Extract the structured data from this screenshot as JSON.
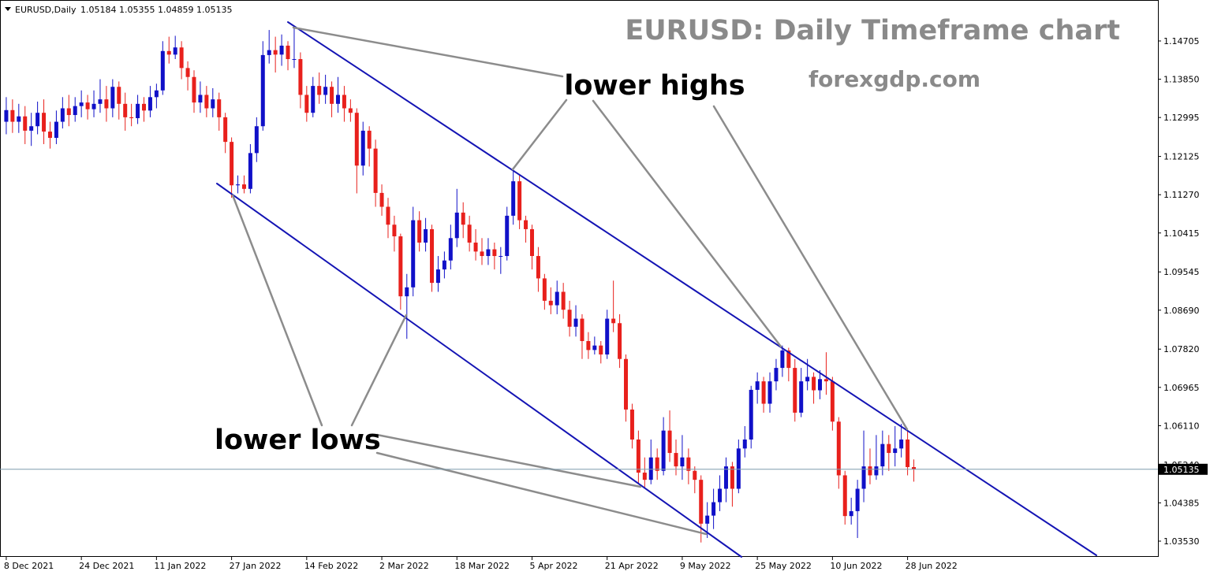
{
  "chart_data": {
    "type": "candlestick",
    "symbol": "EURUSD,Daily",
    "title": "EURUSD: Daily Timeframe chart",
    "subtitle": "forexgdp.com",
    "annotations": [
      "lower highs",
      "lower lows"
    ],
    "up_color": "#1010c8",
    "down_color": "#e8201c",
    "current_price": 1.05135,
    "ylim": [
      1.03178,
      1.1562
    ],
    "yticks": [
      1.14705,
      {
        "value": 1.1385,
        "label": "1.13850"
      },
      1.12995,
      1.12125,
      {
        "value": 1.1127,
        "label": "1.11270"
      },
      1.10415,
      1.09545,
      {
        "value": 1.0869,
        "label": "1.08690"
      },
      {
        "value": 1.0782,
        "label": "1.07820"
      },
      1.06965,
      {
        "value": 1.0611,
        "label": "1.06110"
      },
      {
        "value": 1.0524,
        "label": "1.05240"
      },
      1.04385,
      {
        "value": 1.0353,
        "label": "1.03530"
      }
    ],
    "xlim": [
      -1,
      184
    ],
    "xticks": [
      {
        "value": 0,
        "label": "8 Dec 2021"
      },
      {
        "value": 12,
        "label": "24 Dec 2021"
      },
      {
        "value": 24,
        "label": "11 Jan 2022"
      },
      {
        "value": 36,
        "label": "27 Jan 2022"
      },
      {
        "value": 48,
        "label": "14 Feb 2022"
      },
      {
        "value": 60,
        "label": "2 Mar 2022"
      },
      {
        "value": 72,
        "label": "18 Mar 2022"
      },
      {
        "value": 84,
        "label": "5 Apr 2022"
      },
      {
        "value": 96,
        "label": "21 Apr 2022"
      },
      {
        "value": 108,
        "label": "9 May 2022"
      },
      {
        "value": 120,
        "label": "25 May 2022"
      },
      {
        "value": 132,
        "label": "10 Jun 2022"
      },
      {
        "value": 144,
        "label": "28 Jun 2022"
      }
    ],
    "open": [
      1.129,
      1.1316,
      1.129,
      1.1302,
      1.127,
      1.128,
      1.131,
      1.1268,
      1.1254,
      1.129,
      1.132,
      1.1305,
      1.1325,
      1.1333,
      1.1318,
      1.133,
      1.134,
      1.132,
      1.1368,
      1.133,
      1.13,
      1.1298,
      1.133,
      1.1315,
      1.1345,
      1.136,
      1.1448,
      1.144,
      1.1456,
      1.141,
      1.139,
      1.1333,
      1.135,
      1.132,
      1.134,
      1.13,
      1.1245,
      1.1148,
      1.115,
      1.114,
      1.122,
      1.128,
      1.1439,
      1.145,
      1.144,
      1.146,
      1.143,
      1.143,
      1.135,
      1.131,
      1.137,
      1.135,
      1.1368,
      1.133,
      1.135,
      1.132,
      1.131,
      1.1192,
      1.127,
      1.123,
      1.1131,
      1.11,
      1.106,
      1.1034,
      1.09,
      1.092,
      1.107,
      1.102,
      1.105,
      1.093,
      1.096,
      1.098,
      1.103,
      1.1087,
      1.106,
      1.102,
      1.1,
      1.099,
      1.1005,
      1.099,
      1.099,
      1.108,
      1.1157,
      1.107,
      1.105,
      1.099,
      1.094,
      1.089,
      1.088,
      1.091,
      1.087,
      1.0832,
      1.085,
      1.08,
      1.078,
      1.079,
      1.077,
      1.085,
      1.084,
      1.076,
      1.0647,
      1.058,
      1.0506,
      1.049,
      1.054,
      1.051,
      1.06,
      1.055,
      1.052,
      1.054,
      1.051,
      1.049,
      1.0392,
      1.041,
      1.044,
      1.047,
      1.052,
      1.047,
      1.056,
      1.058,
      1.0691,
      1.071,
      1.066,
      1.071,
      1.074,
      1.0779,
      1.074,
      1.064,
      1.071,
      1.072,
      1.069,
      1.0715,
      1.071,
      1.062,
      1.05,
      1.0409,
      1.042,
      1.047,
      1.052,
      1.05,
      1.052,
      1.057,
      1.055,
      1.056,
      1.058,
      1.05184
    ],
    "high": [
      1.1345,
      1.134,
      1.133,
      1.1325,
      1.131,
      1.1335,
      1.134,
      1.129,
      1.1315,
      1.1345,
      1.135,
      1.1345,
      1.136,
      1.135,
      1.136,
      1.1385,
      1.137,
      1.1385,
      1.138,
      1.1355,
      1.133,
      1.135,
      1.1345,
      1.137,
      1.1375,
      1.147,
      1.148,
      1.1482,
      1.147,
      1.1425,
      1.1405,
      1.138,
      1.137,
      1.1365,
      1.1355,
      1.131,
      1.1255,
      1.117,
      1.117,
      1.124,
      1.13,
      1.147,
      1.1495,
      1.148,
      1.1485,
      1.147,
      1.15,
      1.1445,
      1.137,
      1.139,
      1.14,
      1.1395,
      1.138,
      1.139,
      1.137,
      1.134,
      1.132,
      1.129,
      1.128,
      1.125,
      1.115,
      1.112,
      1.108,
      1.104,
      1.095,
      1.11,
      1.109,
      1.1075,
      1.106,
      1.099,
      1.1,
      1.106,
      1.114,
      1.111,
      1.108,
      1.105,
      1.103,
      1.103,
      1.102,
      1.101,
      1.11,
      1.1185,
      1.117,
      1.108,
      1.106,
      1.101,
      1.095,
      1.092,
      1.0935,
      1.093,
      1.089,
      1.088,
      1.086,
      1.082,
      1.081,
      1.08,
      1.087,
      1.0935,
      1.086,
      1.077,
      1.066,
      1.06,
      1.054,
      1.058,
      1.056,
      1.063,
      1.0645,
      1.058,
      1.059,
      1.056,
      1.052,
      1.05,
      1.044,
      1.047,
      1.05,
      1.054,
      1.053,
      1.058,
      1.061,
      1.07,
      1.073,
      1.072,
      1.073,
      1.076,
      1.079,
      1.0785,
      1.076,
      1.074,
      1.076,
      1.073,
      1.0735,
      1.0775,
      1.072,
      1.063,
      1.051,
      1.045,
      1.049,
      1.06,
      1.056,
      1.059,
      1.06,
      1.059,
      1.061,
      1.0615,
      1.06,
      1.05355
    ],
    "low": [
      1.1262,
      1.1265,
      1.1265,
      1.124,
      1.1236,
      1.1262,
      1.124,
      1.123,
      1.124,
      1.1275,
      1.128,
      1.129,
      1.13,
      1.1295,
      1.13,
      1.131,
      1.129,
      1.13,
      1.1295,
      1.127,
      1.128,
      1.1285,
      1.129,
      1.13,
      1.132,
      1.135,
      1.142,
      1.143,
      1.1385,
      1.136,
      1.131,
      1.131,
      1.13,
      1.13,
      1.127,
      1.122,
      1.112,
      1.113,
      1.113,
      1.113,
      1.12,
      1.127,
      1.142,
      1.14,
      1.1415,
      1.1405,
      1.141,
      1.132,
      1.129,
      1.13,
      1.133,
      1.133,
      1.13,
      1.131,
      1.129,
      1.129,
      1.113,
      1.117,
      1.119,
      1.11,
      1.108,
      1.103,
      1.1,
      1.087,
      1.0805,
      1.09,
      1.1,
      1.1,
      1.091,
      1.091,
      1.094,
      1.096,
      1.101,
      1.103,
      1.1,
      1.098,
      1.097,
      1.097,
      1.096,
      1.095,
      1.098,
      1.106,
      1.105,
      1.102,
      1.096,
      1.091,
      1.087,
      1.086,
      1.086,
      1.085,
      1.081,
      1.081,
      1.076,
      1.076,
      1.077,
      1.075,
      1.076,
      1.082,
      1.074,
      1.062,
      1.056,
      1.048,
      1.047,
      1.048,
      1.049,
      1.05,
      1.053,
      1.05,
      1.049,
      1.048,
      1.046,
      1.035,
      1.036,
      1.038,
      1.042,
      1.044,
      1.043,
      1.046,
      1.054,
      1.056,
      1.066,
      1.064,
      1.064,
      1.069,
      1.072,
      1.071,
      1.062,
      1.063,
      1.069,
      1.066,
      1.067,
      1.068,
      1.06,
      1.047,
      1.039,
      1.039,
      1.036,
      1.044,
      1.048,
      1.049,
      1.05,
      1.051,
      1.052,
      1.054,
      1.05,
      1.04859
    ],
    "close": [
      1.1316,
      1.129,
      1.1302,
      1.127,
      1.128,
      1.131,
      1.1268,
      1.1254,
      1.129,
      1.132,
      1.1305,
      1.1325,
      1.1333,
      1.1318,
      1.133,
      1.134,
      1.132,
      1.1368,
      1.133,
      1.13,
      1.1298,
      1.133,
      1.1315,
      1.1345,
      1.136,
      1.1448,
      1.144,
      1.1456,
      1.141,
      1.139,
      1.1333,
      1.135,
      1.132,
      1.134,
      1.13,
      1.1245,
      1.1148,
      1.115,
      1.114,
      1.122,
      1.128,
      1.1439,
      1.145,
      1.144,
      1.146,
      1.143,
      1.143,
      1.135,
      1.131,
      1.137,
      1.135,
      1.1368,
      1.133,
      1.135,
      1.132,
      1.131,
      1.1192,
      1.127,
      1.123,
      1.1131,
      1.11,
      1.106,
      1.1034,
      1.09,
      1.092,
      1.107,
      1.102,
      1.105,
      1.093,
      1.096,
      1.098,
      1.103,
      1.1087,
      1.106,
      1.102,
      1.1,
      1.099,
      1.1005,
      1.099,
      1.099,
      1.108,
      1.1157,
      1.107,
      1.105,
      1.099,
      1.094,
      1.089,
      1.088,
      1.091,
      1.087,
      1.0832,
      1.085,
      1.08,
      1.078,
      1.079,
      1.077,
      1.085,
      1.084,
      1.076,
      1.0647,
      1.058,
      1.0506,
      1.049,
      1.054,
      1.051,
      1.06,
      1.055,
      1.052,
      1.054,
      1.051,
      1.049,
      1.0392,
      1.041,
      1.044,
      1.047,
      1.052,
      1.047,
      1.056,
      1.058,
      1.0691,
      1.071,
      1.066,
      1.071,
      1.074,
      1.0779,
      1.074,
      1.064,
      1.071,
      1.072,
      1.069,
      1.0715,
      1.071,
      1.062,
      1.05,
      1.0409,
      1.042,
      1.047,
      1.052,
      1.05,
      1.052,
      1.057,
      1.055,
      1.056,
      1.058,
      1.05184,
      1.05135
    ]
  }
}
